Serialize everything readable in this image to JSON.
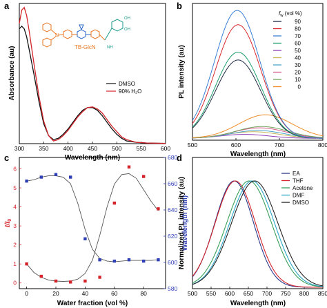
{
  "chart_data": [
    {
      "panel": "a",
      "type": "line",
      "xlabel": "Wavelength (nm)",
      "ylabel": "Absorbance (au)",
      "xlim": [
        300,
        600
      ],
      "ylim": [
        0,
        1.05
      ],
      "xticks": [
        300,
        350,
        400,
        450,
        500,
        550,
        600
      ],
      "compound_label": "TB-GlcN",
      "legend": [
        {
          "name": "DMSO",
          "color": "#111111"
        },
        {
          "name": "90% H₂O",
          "color": "#d4232a"
        }
      ],
      "series": [
        {
          "name": "DMSO",
          "color": "#111111",
          "x": [
            300,
            305,
            310,
            315,
            320,
            330,
            340,
            350,
            360,
            370,
            380,
            390,
            400,
            410,
            420,
            430,
            440,
            450,
            460,
            470,
            480,
            490,
            500,
            510,
            520,
            540,
            560,
            580,
            600
          ],
          "y": [
            0.86,
            0.88,
            0.86,
            0.8,
            0.71,
            0.52,
            0.32,
            0.15,
            0.06,
            0.03,
            0.04,
            0.07,
            0.11,
            0.16,
            0.21,
            0.25,
            0.27,
            0.27,
            0.25,
            0.21,
            0.16,
            0.11,
            0.07,
            0.04,
            0.02,
            0.01,
            0.005,
            0.003,
            0.002
          ]
        },
        {
          "name": "90% H₂O",
          "color": "#d4232a",
          "x": [
            300,
            305,
            310,
            315,
            320,
            330,
            340,
            350,
            360,
            370,
            380,
            390,
            400,
            410,
            420,
            430,
            440,
            450,
            460,
            470,
            480,
            490,
            500,
            510,
            520,
            540,
            560,
            580,
            600
          ],
          "y": [
            0.9,
            1.0,
            1.02,
            0.96,
            0.85,
            0.6,
            0.36,
            0.17,
            0.06,
            0.02,
            0.03,
            0.06,
            0.1,
            0.15,
            0.2,
            0.24,
            0.27,
            0.275,
            0.26,
            0.23,
            0.18,
            0.13,
            0.09,
            0.05,
            0.03,
            0.01,
            0.005,
            0.003,
            0.002
          ]
        }
      ]
    },
    {
      "panel": "b",
      "type": "line",
      "xlabel": "Wavelength (nm)",
      "ylabel": "PL intensity (au)",
      "xlim": [
        500,
        800
      ],
      "xticks": [
        500,
        600,
        700,
        800
      ],
      "legend_title": "f_w (vol %)",
      "legend_title_main": "f",
      "legend_title_sub": "w",
      "legend_title_rest": " (vol %)",
      "series": [
        {
          "name": "90",
          "color": "#1f2a44",
          "peak": 605,
          "width": 52,
          "amp": 0.6
        },
        {
          "name": "80",
          "color": "#d9262b",
          "peak": 605,
          "width": 52,
          "amp": 0.87
        },
        {
          "name": "70",
          "color": "#3a7fd5",
          "peak": 603,
          "width": 52,
          "amp": 0.98
        },
        {
          "name": "60",
          "color": "#1a9d6a",
          "peak": 605,
          "width": 52,
          "amp": 0.66
        },
        {
          "name": "50",
          "color": "#8e3fb5",
          "peak": 620,
          "width": 55,
          "amp": 0.03
        },
        {
          "name": "40",
          "color": "#c8b85a",
          "peak": 640,
          "width": 60,
          "amp": 0.05
        },
        {
          "name": "30",
          "color": "#4aa3c9",
          "peak": 650,
          "width": 60,
          "amp": 0.06
        },
        {
          "name": "20",
          "color": "#d65b8a",
          "peak": 655,
          "width": 60,
          "amp": 0.08
        },
        {
          "name": "10",
          "color": "#6fa35a",
          "peak": 660,
          "width": 60,
          "amp": 0.09
        },
        {
          "name": "0",
          "color": "#f08a24",
          "peak": 668,
          "width": 62,
          "amp": 0.18
        }
      ]
    },
    {
      "panel": "c",
      "type": "scatter",
      "xlabel": "Water fraction (vol %)",
      "ylabel_main": "I/I",
      "ylabel_sub": "0",
      "y2label": "Wavelength (nm)",
      "xlim": [
        -5,
        95
      ],
      "ylim": [
        -0.3,
        6.6
      ],
      "y2lim": [
        580,
        680
      ],
      "xticks": [
        0,
        20,
        40,
        60,
        80
      ],
      "yticks": [
        0,
        1,
        2,
        3,
        4,
        5,
        6
      ],
      "y2ticks": [
        580,
        600,
        620,
        640,
        660,
        680
      ],
      "series": [
        {
          "name": "I/I0",
          "color": "#d4232a",
          "axis": "left",
          "x": [
            0,
            10,
            20,
            30,
            40,
            50,
            60,
            70,
            80,
            90
          ],
          "y": [
            1.0,
            0.35,
            0.1,
            0.05,
            0.1,
            0.3,
            4.2,
            6.1,
            5.6,
            3.9
          ]
        },
        {
          "name": "Wavelength",
          "color": "#2f3fb5",
          "axis": "right",
          "x": [
            0,
            10,
            20,
            30,
            40,
            50,
            60,
            70,
            80,
            90
          ],
          "y": [
            662,
            665,
            667,
            665,
            618,
            602,
            601,
            602,
            601,
            602
          ]
        }
      ],
      "fit_left": {
        "x": [
          0,
          5,
          10,
          15,
          20,
          25,
          30,
          35,
          40,
          45,
          50,
          55,
          60,
          65,
          70,
          75,
          80,
          85,
          90
        ],
        "y": [
          1.0,
          0.55,
          0.3,
          0.15,
          0.1,
          0.08,
          0.1,
          0.2,
          0.5,
          1.2,
          2.5,
          4.0,
          5.2,
          5.7,
          5.75,
          5.5,
          4.9,
          4.3,
          3.8
        ]
      },
      "fit_right": {
        "x": [
          0,
          5,
          10,
          15,
          20,
          25,
          30,
          35,
          40,
          45,
          50,
          55,
          60,
          65,
          70,
          75,
          80,
          85,
          90
        ],
        "y": [
          662,
          663,
          665,
          666,
          666,
          665,
          660,
          645,
          625,
          610,
          603,
          601,
          600.5,
          601,
          601.5,
          601.5,
          601.5,
          601.5,
          602
        ]
      }
    },
    {
      "panel": "d",
      "type": "line",
      "xlabel": "Wavelength (nm)",
      "ylabel": "Normalized PL intensity (au)",
      "xlim": [
        500,
        850
      ],
      "xticks": [
        500,
        550,
        600,
        650,
        700,
        750,
        800,
        850
      ],
      "series": [
        {
          "name": "EA",
          "color": "#2b3a8c",
          "peak": 612,
          "width": 52
        },
        {
          "name": "THF",
          "color": "#d4232a",
          "peak": 615,
          "width": 54
        },
        {
          "name": "Acetone",
          "color": "#3aa05a",
          "peak": 652,
          "width": 60
        },
        {
          "name": "DMF",
          "color": "#29a7c7",
          "peak": 660,
          "width": 60
        },
        {
          "name": "DMSO",
          "color": "#222222",
          "peak": 667,
          "width": 62
        }
      ]
    }
  ],
  "panel_letters": {
    "a": "a",
    "b": "b",
    "c": "c",
    "d": "d"
  }
}
